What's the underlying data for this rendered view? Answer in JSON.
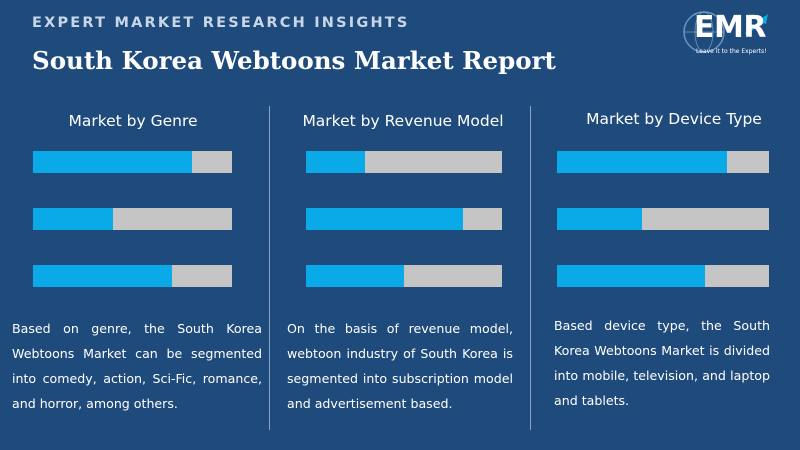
{
  "header": {
    "kicker": "EXPERT MARKET RESEARCH INSIGHTS",
    "title": "South Korea Webtoons Market Report"
  },
  "logo": {
    "text": "EMR",
    "tagline": "Leave it to the Experts!"
  },
  "colors": {
    "background": "#1f4a7c",
    "bar_fill": "#0aa9e8",
    "bar_track": "#c5c5c5",
    "divider": "#8da6c6"
  },
  "chart_data": [
    {
      "type": "bar",
      "title": "Market by Genre",
      "values": [
        0.8,
        0.4,
        0.7
      ],
      "ylim": [
        0,
        1
      ]
    },
    {
      "type": "bar",
      "title": "Market by Revenue Model",
      "values": [
        0.3,
        0.8,
        0.5
      ],
      "ylim": [
        0,
        1
      ]
    },
    {
      "type": "bar",
      "title": "Market by Device Type",
      "values": [
        0.8,
        0.4,
        0.7
      ],
      "ylim": [
        0,
        1
      ]
    }
  ],
  "descriptions": [
    "Based on genre, the South Korea Webtoons Market can be segmented into comedy, action, Sci-Fic, romance, and horror, among others.",
    "On the basis of revenue model, webtoon industry of South Korea is segmented into subscription model and advertisement based.",
    "Based device type, the South Korea Webtoons Market is divided into mobile, television, and laptop and tablets."
  ]
}
